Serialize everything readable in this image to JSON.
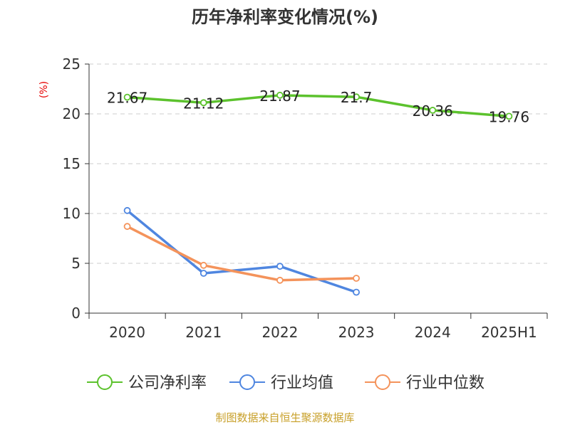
{
  "chart_data": {
    "type": "line",
    "title": "历年净利率变化情况(%)",
    "ylabel": "(%)",
    "xlabel": "",
    "categories": [
      "2020",
      "2021",
      "2022",
      "2023",
      "2024",
      "2025H1"
    ],
    "ylim": [
      0,
      25
    ],
    "yticks": [
      0,
      5,
      10,
      15,
      20,
      25
    ],
    "grid": true,
    "legend_position": "bottom",
    "series": [
      {
        "name": "公司净利率",
        "color": "#5cc22d",
        "values": [
          21.67,
          21.12,
          21.87,
          21.7,
          20.36,
          19.76
        ],
        "labels": [
          "21.67",
          "21.12",
          "21.87",
          "21.7",
          "20.36",
          "19.76"
        ],
        "show_labels": true
      },
      {
        "name": "行业均值",
        "color": "#4f86e0",
        "values": [
          10.3,
          4.0,
          4.7,
          2.1,
          null,
          null
        ],
        "show_labels": false
      },
      {
        "name": "行业中位数",
        "color": "#f4935b",
        "values": [
          8.7,
          4.8,
          3.3,
          3.5,
          null,
          null
        ],
        "show_labels": false
      }
    ]
  },
  "footer": {
    "source": "制图数据来自恒生聚源数据库"
  }
}
